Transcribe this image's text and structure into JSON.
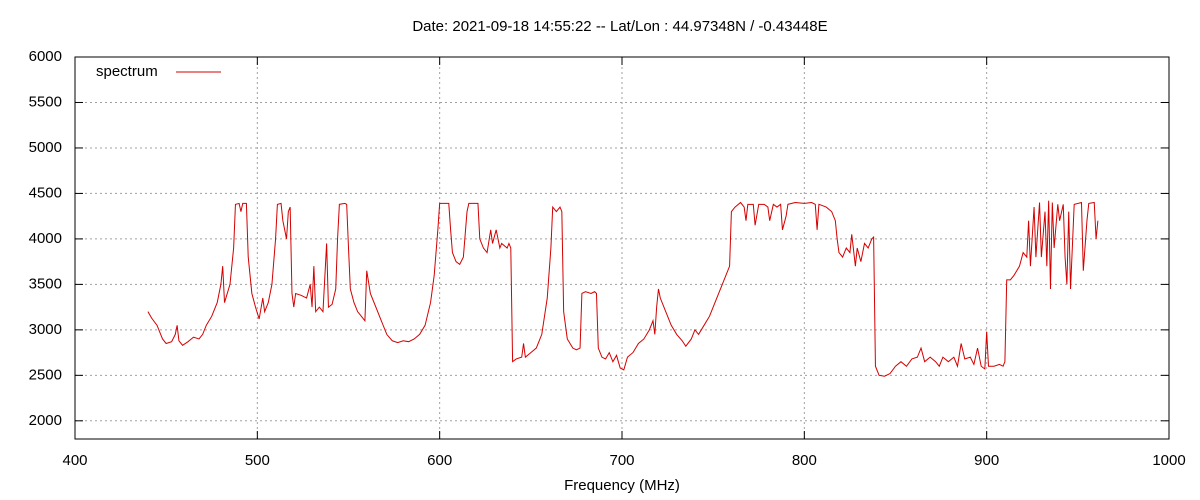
{
  "chart_data": {
    "type": "line",
    "title": "Date: 2021-09-18 14:55:22  --  Lat/Lon : 44.97348N / -0.43448E",
    "xlabel": "Frequency (MHz)",
    "xlim": [
      400,
      1000
    ],
    "xticks": [
      400,
      500,
      600,
      700,
      800,
      900,
      1000
    ],
    "ylim": [
      1800,
      6000
    ],
    "yticks": [
      2000,
      2500,
      3000,
      3500,
      4000,
      4500,
      5000,
      5500,
      6000
    ],
    "grid": true,
    "legend": "top-left",
    "series": [
      {
        "name": "spectrum",
        "color": "#d40000",
        "x": [
          440,
          442,
          445,
          448,
          450,
          453,
          455,
          456,
          457,
          459,
          462,
          465,
          468,
          470,
          472,
          475,
          478,
          480,
          481,
          482,
          485,
          487,
          488,
          490,
          491,
          492,
          494,
          495,
          497,
          499,
          501,
          503,
          504,
          506,
          508,
          510,
          511,
          513,
          514,
          516,
          517,
          518,
          519,
          520,
          521,
          524,
          527,
          529,
          530,
          531,
          532,
          534,
          536,
          538,
          539,
          541,
          543,
          544,
          545,
          548,
          549,
          550,
          551,
          553,
          555,
          557,
          559,
          560,
          562,
          565,
          568,
          571,
          574,
          577,
          580,
          583,
          586,
          589,
          592,
          595,
          597,
          599,
          600,
          604,
          605,
          606,
          607,
          609,
          611,
          613,
          615,
          616,
          619,
          621,
          622,
          624,
          626,
          628,
          629,
          631,
          633,
          634,
          637,
          638,
          639,
          640,
          642,
          645,
          646,
          647,
          650,
          653,
          656,
          659,
          661,
          662,
          664,
          666,
          667,
          668,
          670,
          673,
          675,
          677,
          678,
          680,
          683,
          685,
          686,
          687,
          689,
          691,
          693,
          695,
          697,
          699,
          701,
          703,
          706,
          709,
          712,
          715,
          717,
          718,
          719,
          720,
          721,
          724,
          727,
          730,
          733,
          735,
          738,
          740,
          742,
          745,
          748,
          751,
          754,
          757,
          759,
          760,
          762,
          765,
          767,
          768,
          769,
          772,
          773,
          775,
          778,
          780,
          781,
          783,
          785,
          787,
          788,
          790,
          791,
          795,
          800,
          804,
          806,
          807,
          808,
          812,
          815,
          817,
          818,
          819,
          821,
          823,
          825,
          826,
          828,
          829,
          831,
          833,
          835,
          837,
          838,
          839,
          841,
          844,
          847,
          850,
          853,
          856,
          859,
          862,
          864,
          866,
          869,
          872,
          874,
          876,
          879,
          882,
          884,
          886,
          888,
          891,
          893,
          895,
          897,
          899,
          900,
          901,
          904,
          907,
          909,
          910,
          911,
          913,
          915,
          918,
          920,
          922,
          923,
          924,
          926,
          927,
          929,
          930,
          932,
          933,
          934,
          935,
          936,
          937,
          939,
          940,
          942,
          943,
          944,
          945,
          946,
          948,
          952,
          953,
          955,
          956,
          959,
          960,
          961
        ],
        "values": [
          3200,
          3130,
          3050,
          2900,
          2850,
          2870,
          2950,
          3050,
          2880,
          2830,
          2870,
          2920,
          2900,
          2950,
          3050,
          3150,
          3300,
          3500,
          3700,
          3300,
          3500,
          3900,
          4380,
          4390,
          4300,
          4390,
          4390,
          3800,
          3400,
          3250,
          3120,
          3350,
          3200,
          3300,
          3500,
          4000,
          4380,
          4390,
          4200,
          4000,
          4300,
          4350,
          3400,
          3250,
          3400,
          3380,
          3350,
          3500,
          3250,
          3700,
          3200,
          3250,
          3200,
          3950,
          3250,
          3280,
          3450,
          4000,
          4380,
          4390,
          4380,
          3900,
          3450,
          3300,
          3200,
          3150,
          3100,
          3650,
          3400,
          3250,
          3100,
          2950,
          2880,
          2860,
          2880,
          2870,
          2900,
          2950,
          3050,
          3300,
          3600,
          4100,
          4390,
          4390,
          4390,
          4100,
          3850,
          3750,
          3720,
          3800,
          4300,
          4390,
          4390,
          4390,
          4000,
          3900,
          3850,
          4100,
          3950,
          4100,
          3900,
          3950,
          3900,
          3950,
          3900,
          2650,
          2680,
          2700,
          2850,
          2700,
          2750,
          2800,
          2950,
          3350,
          3900,
          4350,
          4300,
          4350,
          4300,
          3200,
          2900,
          2800,
          2780,
          2800,
          3400,
          3420,
          3400,
          3420,
          3400,
          2800,
          2700,
          2680,
          2750,
          2650,
          2720,
          2580,
          2560,
          2700,
          2750,
          2850,
          2900,
          3000,
          3100,
          2950,
          3250,
          3450,
          3350,
          3200,
          3050,
          2950,
          2880,
          2820,
          2900,
          3000,
          2950,
          3050,
          3150,
          3300,
          3450,
          3600,
          3700,
          4300,
          4350,
          4400,
          4350,
          4200,
          4380,
          4380,
          4150,
          4380,
          4380,
          4350,
          4200,
          4380,
          4350,
          4380,
          4100,
          4250,
          4380,
          4400,
          4390,
          4400,
          4380,
          4100,
          4380,
          4350,
          4300,
          4200,
          4000,
          3850,
          3800,
          3900,
          3850,
          4050,
          3700,
          3900,
          3750,
          3950,
          3900,
          4000,
          4020,
          2600,
          2500,
          2490,
          2520,
          2600,
          2650,
          2600,
          2680,
          2700,
          2800,
          2650,
          2700,
          2650,
          2600,
          2700,
          2650,
          2700,
          2600,
          2850,
          2680,
          2700,
          2620,
          2800,
          2600,
          2570,
          2980,
          2600,
          2600,
          2620,
          2600,
          2650,
          3550,
          3550,
          3600,
          3700,
          3850,
          3800,
          4200,
          3700,
          4350,
          3800,
          4400,
          3800,
          4300,
          3700,
          4420,
          3450,
          4400,
          3900,
          4380,
          4200,
          4380,
          3800,
          3500,
          4300,
          3450,
          4380,
          4400,
          3650,
          4200,
          4390,
          4400,
          4000,
          4200
        ]
      }
    ]
  }
}
